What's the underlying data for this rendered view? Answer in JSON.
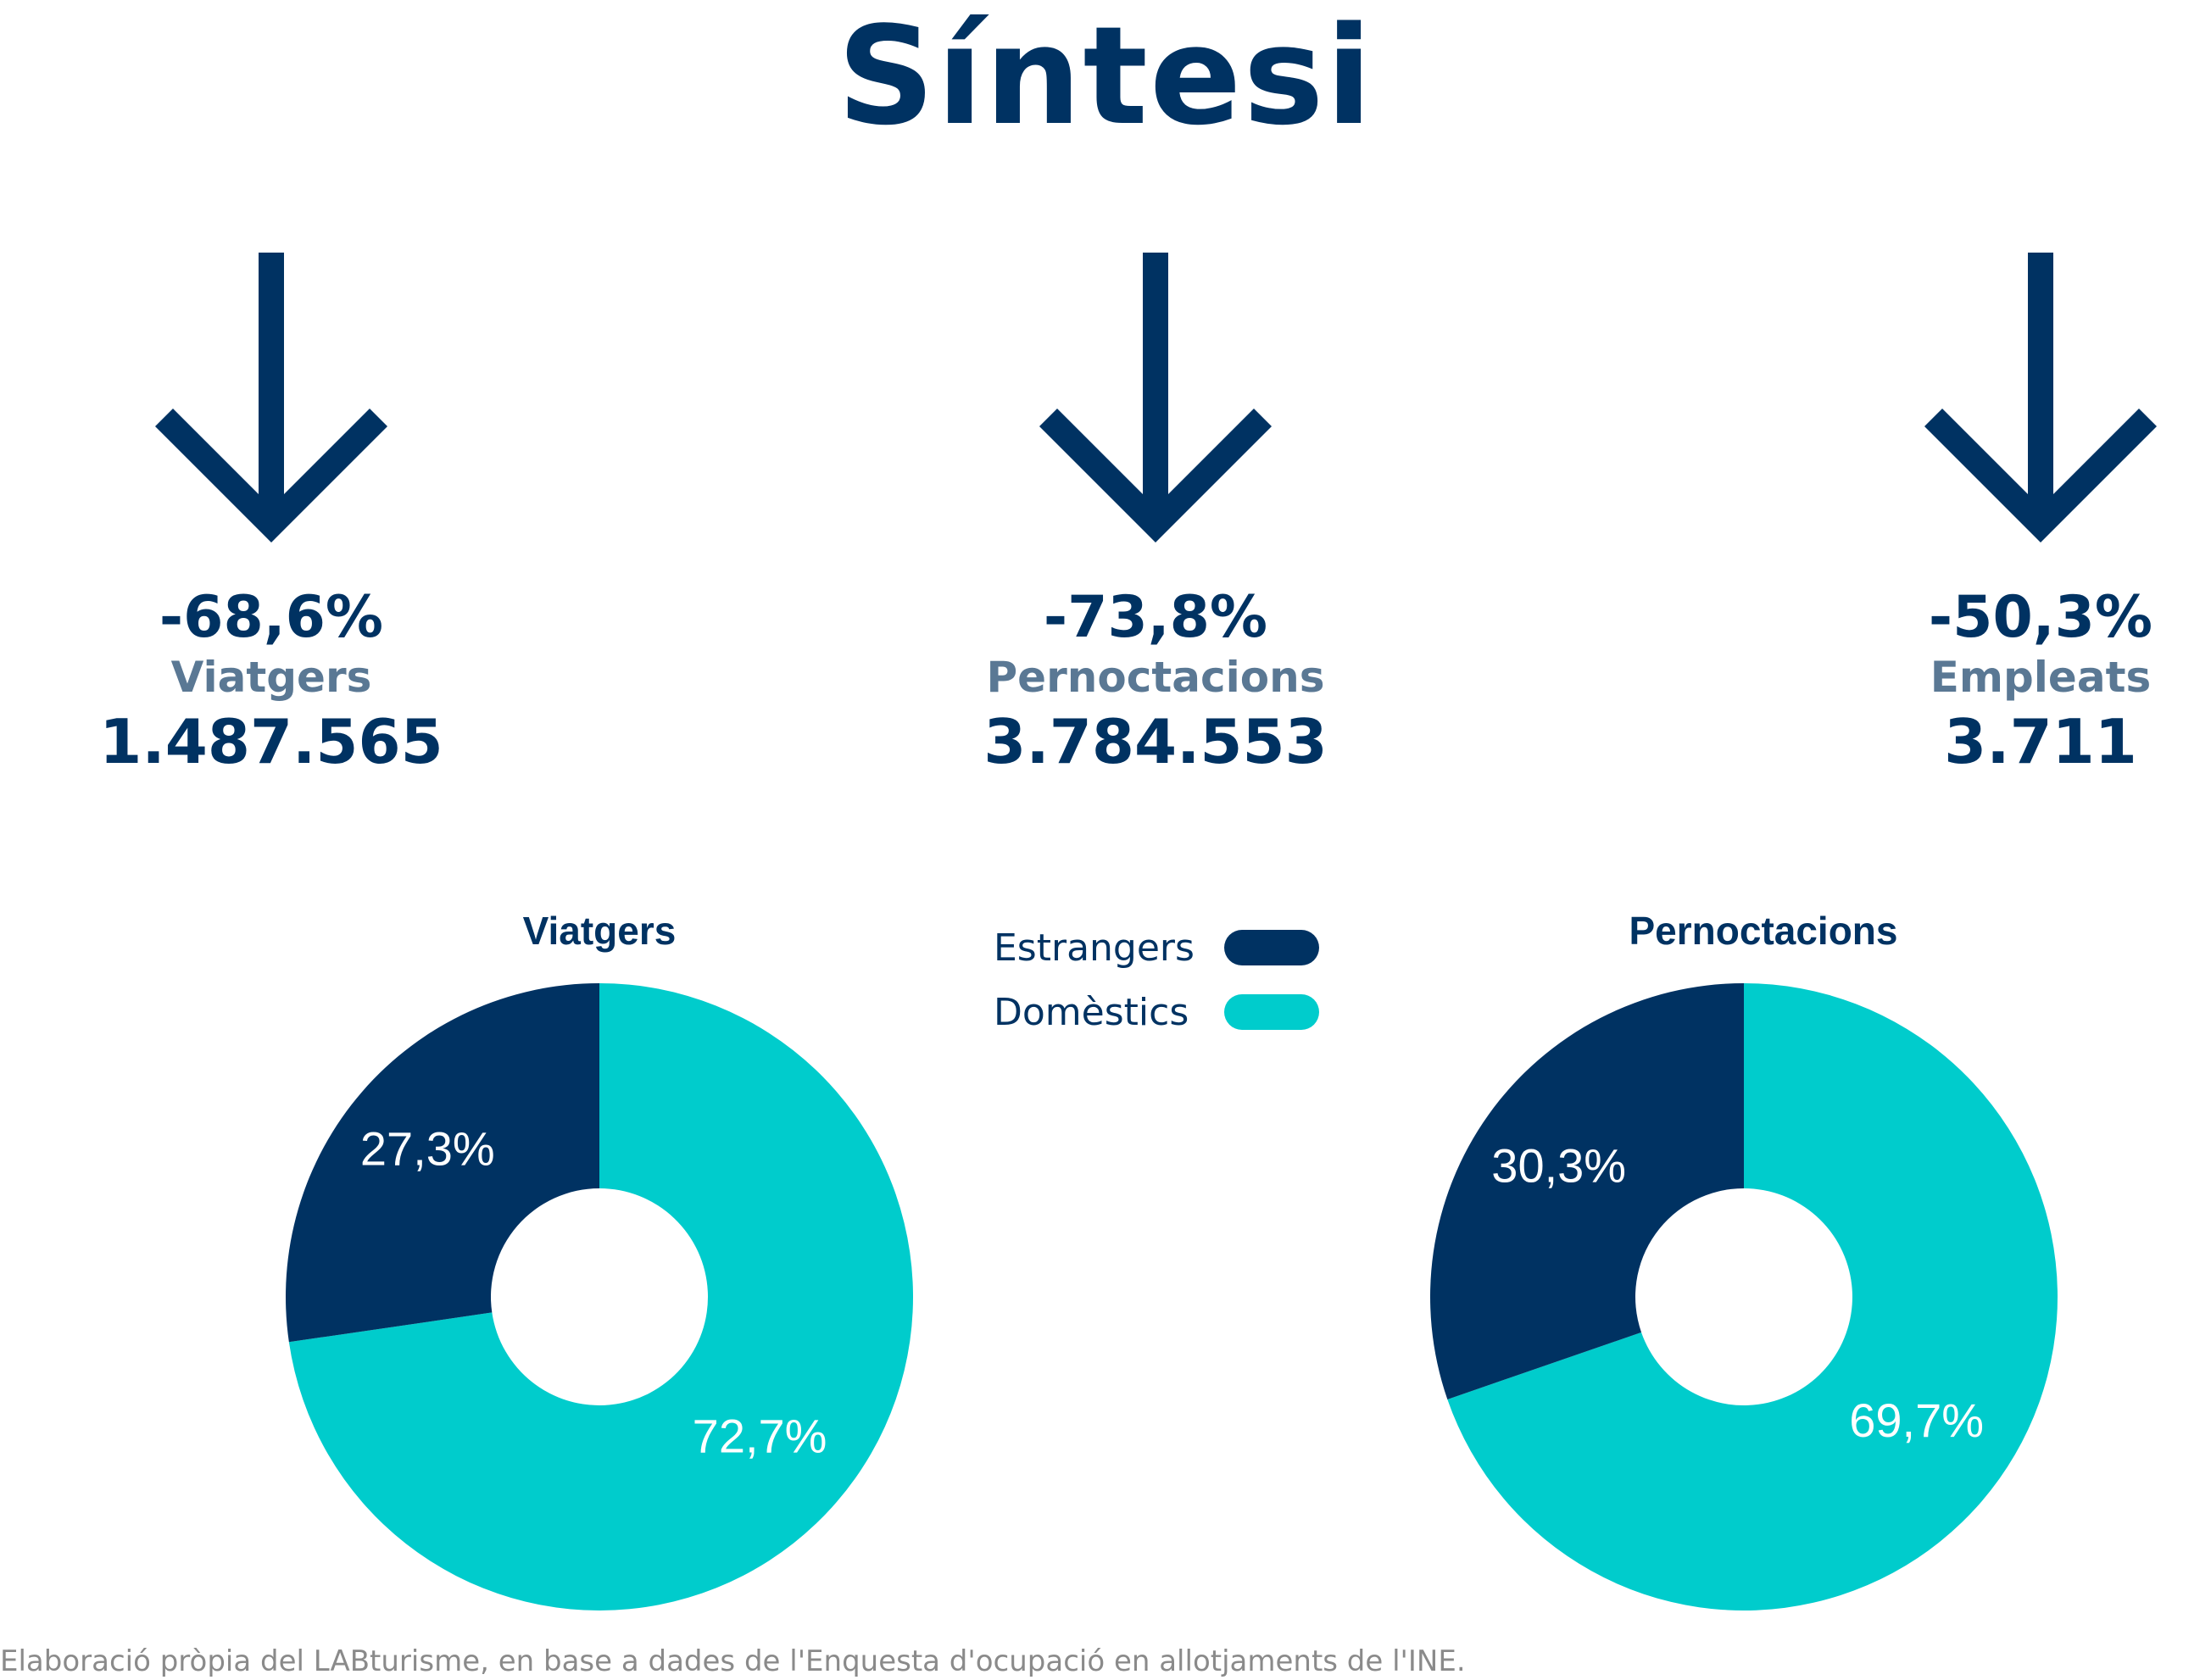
{
  "title": "Síntesi",
  "kpis": [
    {
      "change": "-68,6%",
      "label": "Viatgers",
      "value": "1.487.565"
    },
    {
      "change": "-73,8%",
      "label": "Pernoctacions",
      "value": "3.784.553"
    },
    {
      "change": "-50,3%",
      "label": "Empleats",
      "value": "3.711"
    }
  ],
  "icons": {
    "trend": "arrow-down-icon"
  },
  "colors": {
    "primary": "#003262",
    "secondary": "#00cccc",
    "muted": "#5a7894"
  },
  "legend": [
    {
      "label": "Estrangers",
      "color": "#003262"
    },
    {
      "label": "Domèstics",
      "color": "#00cccc"
    }
  ],
  "chart_data": [
    {
      "type": "pie",
      "title": "Viatgers",
      "categories": [
        "Estrangers",
        "Domèstics"
      ],
      "values": [
        27.3,
        72.7
      ],
      "labels": [
        "27,3%",
        "72,7%"
      ],
      "colors": [
        "#003262",
        "#00cccc"
      ],
      "legend": "center"
    },
    {
      "type": "pie",
      "title": "Pernoctacions",
      "categories": [
        "Estrangers",
        "Domèstics"
      ],
      "values": [
        30.3,
        69.7
      ],
      "labels": [
        "30,3%",
        "69,7%"
      ],
      "colors": [
        "#003262",
        "#00cccc"
      ],
      "legend": "center"
    }
  ],
  "source": "Elaboració pròpia del LABturisme, en base a dades de l'Enquesta d'ocupació en allotjaments de l'INE."
}
